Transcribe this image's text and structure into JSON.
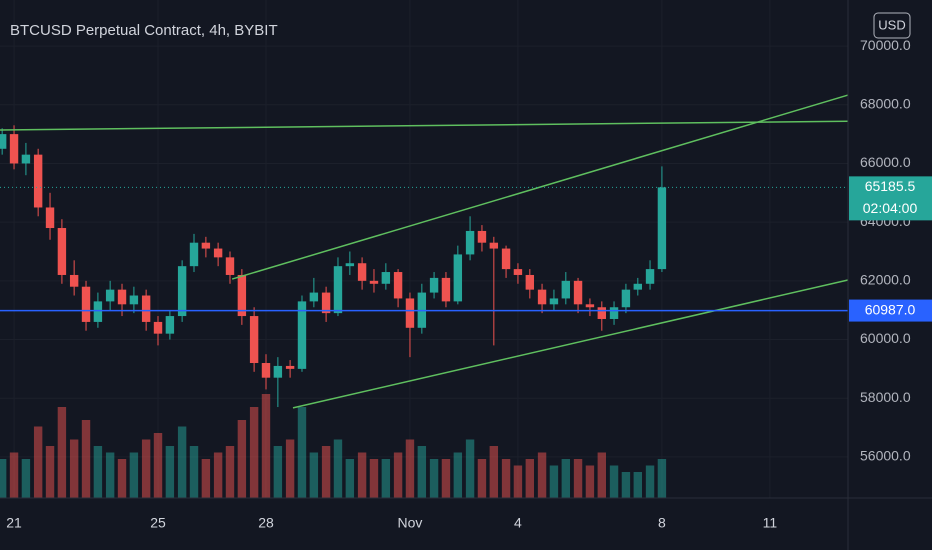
{
  "chart_data": {
    "type": "candlestick",
    "title": "BTCUSD Perpetual Contract, 4h, BYBIT",
    "currency": "USD",
    "xlim": [
      -0.39,
      23.17
    ],
    "xticks": [
      {
        "value": 0,
        "label": "21"
      },
      {
        "value": 4,
        "label": "25"
      },
      {
        "value": 7,
        "label": "28"
      },
      {
        "value": 11,
        "label": "Nov"
      },
      {
        "value": 14,
        "label": "4"
      },
      {
        "value": 18,
        "label": "8"
      },
      {
        "value": 21,
        "label": "11"
      }
    ],
    "ylim": [
      54600,
      71570
    ],
    "yticks": [
      {
        "value": 56000,
        "label": "56000.0"
      },
      {
        "value": 58000,
        "label": "58000.0"
      },
      {
        "value": 60000,
        "label": "60000.0"
      },
      {
        "value": 62000,
        "label": "62000.0"
      },
      {
        "value": 64000,
        "label": "64000.0"
      },
      {
        "value": 66000,
        "label": "66000.0"
      },
      {
        "value": 68000,
        "label": "68000.0"
      },
      {
        "value": 70000,
        "label": "70000.0"
      }
    ],
    "grid": true,
    "up_color": "#26a69a",
    "down_color": "#ef5350",
    "volume_lim": [
      0,
      100
    ],
    "x": [
      -0.33,
      0,
      0.33,
      0.67,
      1,
      1.33,
      1.67,
      2,
      2.33,
      2.67,
      3,
      3.33,
      3.67,
      4,
      4.33,
      4.67,
      5,
      5.33,
      5.67,
      6,
      6.33,
      6.67,
      7,
      7.33,
      7.67,
      8,
      8.33,
      8.67,
      9,
      9.33,
      9.67,
      10,
      10.33,
      10.67,
      11,
      11.33,
      11.67,
      12,
      12.33,
      12.67,
      13,
      13.33,
      13.67,
      14,
      14.33,
      14.67,
      15,
      15.33,
      15.67,
      16,
      16.33,
      16.67,
      17,
      17.33,
      17.67,
      18
    ],
    "open": [
      66500,
      67000,
      66000,
      66300,
      64500,
      63800,
      62200,
      61800,
      60600,
      61300,
      61700,
      61200,
      61500,
      60600,
      60200,
      60800,
      62500,
      63300,
      63100,
      62800,
      62200,
      60800,
      59200,
      58700,
      59100,
      59000,
      61300,
      61600,
      60900,
      62500,
      62600,
      62000,
      61900,
      62300,
      61400,
      60400,
      61600,
      62100,
      61300,
      62900,
      63700,
      63300,
      63100,
      62400,
      62200,
      61700,
      61200,
      61400,
      62000,
      61200,
      61100,
      60700,
      61100,
      61700,
      61900,
      62400
    ],
    "high": [
      67200,
      67300,
      66700,
      66500,
      65000,
      64100,
      62700,
      62000,
      61600,
      62000,
      61900,
      61800,
      61700,
      60800,
      61000,
      62700,
      63600,
      63500,
      63300,
      63000,
      62400,
      61100,
      59500,
      59400,
      59300,
      61500,
      62100,
      61800,
      62800,
      63000,
      62800,
      62400,
      62600,
      62400,
      61600,
      61900,
      62300,
      62300,
      63200,
      64200,
      63900,
      63500,
      63200,
      62600,
      62400,
      61900,
      61700,
      62300,
      62100,
      61400,
      61300,
      61300,
      61900,
      62100,
      62700,
      65900
    ],
    "low": [
      66300,
      65800,
      65600,
      64200,
      63400,
      61900,
      61500,
      60300,
      60400,
      61000,
      60800,
      60900,
      60300,
      59800,
      60000,
      60600,
      62300,
      62800,
      62500,
      61900,
      60500,
      58900,
      58300,
      57700,
      58700,
      58900,
      61100,
      60600,
      60800,
      62200,
      61700,
      61600,
      61700,
      61100,
      59400,
      60200,
      61400,
      61100,
      61200,
      62700,
      63000,
      59800,
      62100,
      61900,
      61400,
      60900,
      61000,
      61200,
      60900,
      60800,
      60300,
      60500,
      60900,
      61500,
      61700,
      62300
    ],
    "close": [
      67000,
      66000,
      66300,
      64500,
      63800,
      62200,
      61800,
      60600,
      61300,
      61700,
      61200,
      61500,
      60600,
      60200,
      60800,
      62500,
      63300,
      63100,
      62800,
      62200,
      60800,
      59200,
      58700,
      59100,
      59000,
      61300,
      61600,
      60900,
      62500,
      62600,
      62000,
      61900,
      62300,
      61400,
      60400,
      61600,
      62100,
      61300,
      62900,
      63700,
      63300,
      63100,
      62400,
      62200,
      61700,
      61200,
      61400,
      62000,
      61200,
      61100,
      60700,
      61100,
      61700,
      61900,
      62400,
      65185.5
    ],
    "volume": [
      30,
      35,
      30,
      55,
      40,
      70,
      45,
      60,
      40,
      35,
      30,
      35,
      45,
      50,
      40,
      55,
      40,
      30,
      35,
      40,
      60,
      70,
      80,
      40,
      45,
      70,
      35,
      40,
      45,
      30,
      35,
      30,
      30,
      35,
      45,
      40,
      30,
      30,
      35,
      45,
      30,
      40,
      30,
      25,
      30,
      35,
      25,
      30,
      30,
      25,
      35,
      25,
      20,
      20,
      25,
      30
    ],
    "price_lines": [
      {
        "value": 65185.5,
        "label": "65185.5",
        "countdown": "02:04:00",
        "color": "#26a69a",
        "style": "dotted"
      },
      {
        "value": 60987,
        "label": "60987.0",
        "color": "#2962ff",
        "style": "solid"
      }
    ],
    "trend_lines": [
      {
        "x": [
          -0.39,
          23.17
        ],
        "y": [
          67140,
          67440
        ],
        "color": "#5fbf5f"
      },
      {
        "x": [
          6.06,
          23.17
        ],
        "y": [
          62060,
          68330
        ],
        "color": "#5fbf5f"
      },
      {
        "x": [
          7.75,
          23.17
        ],
        "y": [
          57670,
          62030
        ],
        "color": "#5fbf5f"
      }
    ]
  }
}
